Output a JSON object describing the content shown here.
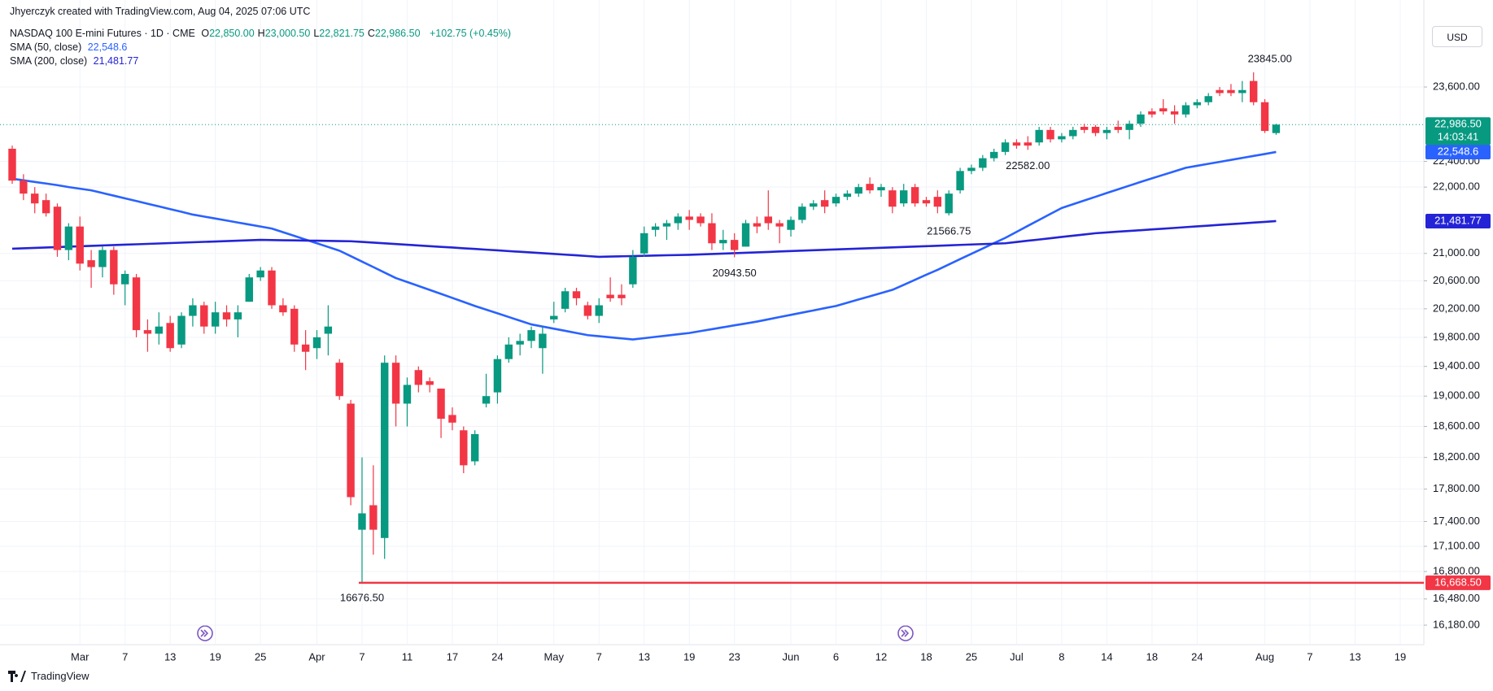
{
  "header": {
    "credit": "Jhyerczyk created with TradingView.com, Aug 04, 2025 07:06 UTC",
    "symbol": "NASDAQ 100 E-mini Futures · 1D · CME",
    "ohlc": [
      {
        "key": "O",
        "text": "22,850.00"
      },
      {
        "key": "H",
        "text": "23,000.50"
      },
      {
        "key": "L",
        "text": "22,821.75"
      },
      {
        "key": "C",
        "text": "22,986.50"
      }
    ],
    "change": "+102.75 (+0.45%)",
    "currency": "USD"
  },
  "footer": {
    "brand": "TradingView"
  },
  "chart_data": {
    "type": "candlestick",
    "log": true,
    "grid": true,
    "up_color": "#089981",
    "down_color": "#f23645",
    "categories": [
      null,
      null,
      null,
      null,
      null,
      null,
      "Mar",
      null,
      null,
      null,
      "7",
      null,
      null,
      null,
      "13",
      null,
      null,
      null,
      "19",
      null,
      null,
      null,
      "25",
      null,
      null,
      null,
      null,
      "Apr",
      null,
      null,
      null,
      "7",
      null,
      null,
      null,
      "11",
      null,
      null,
      null,
      "17",
      null,
      null,
      null,
      "24",
      null,
      null,
      null,
      null,
      "May",
      null,
      null,
      null,
      "7",
      null,
      null,
      null,
      "13",
      null,
      null,
      null,
      "19",
      null,
      null,
      null,
      "23",
      null,
      null,
      null,
      null,
      "Jun",
      null,
      null,
      null,
      "6",
      null,
      null,
      null,
      "12",
      null,
      null,
      null,
      "18",
      null,
      null,
      null,
      "25",
      null,
      null,
      null,
      "Jul",
      null,
      null,
      null,
      "8",
      null,
      null,
      null,
      "14",
      null,
      null,
      null,
      "18",
      null,
      null,
      null,
      "24",
      null,
      null,
      null,
      null,
      null,
      "Aug",
      null,
      null,
      null,
      "7",
      null,
      null,
      null,
      "13",
      null,
      null,
      null,
      "19"
    ],
    "open": [
      22600,
      22100,
      21900,
      21800,
      21700,
      21050,
      21400,
      20900,
      20800,
      21050,
      20550,
      20650,
      19900,
      19850,
      20000,
      19700,
      20100,
      20250,
      19950,
      20150,
      20050,
      20300,
      20650,
      20750,
      20250,
      20200,
      19700,
      19650,
      19850,
      19450,
      18900,
      17300,
      17600,
      17200,
      19450,
      18900,
      19350,
      19200,
      19100,
      18750,
      18550,
      18150,
      18900,
      19050,
      19500,
      19700,
      19750,
      19650,
      20050,
      20200,
      20450,
      20250,
      20100,
      20400,
      20400,
      20550,
      21000,
      21350,
      21400,
      21450,
      21550,
      21550,
      21450,
      21150,
      21200,
      21100,
      21450,
      21550,
      21450,
      21350,
      21500,
      21700,
      21800,
      21750,
      21850,
      21900,
      22050,
      21950,
      21950,
      21750,
      22000,
      21800,
      21850,
      21600,
      21950,
      22250,
      22300,
      22450,
      22550,
      22700,
      22700,
      22700,
      22900,
      22750,
      22800,
      22950,
      22950,
      22850,
      22950,
      22900,
      23000,
      23200,
      23250,
      23200,
      23150,
      23300,
      23350,
      23550,
      23550,
      23500,
      23700,
      23350,
      22850,
      null,
      null,
      null,
      null,
      null,
      null,
      null,
      null,
      null,
      null,
      null
    ],
    "high": [
      22650,
      22200,
      22000,
      21900,
      21750,
      21450,
      21550,
      21050,
      21100,
      21100,
      20750,
      20700,
      20050,
      20150,
      20100,
      20150,
      20350,
      20300,
      20300,
      20250,
      20250,
      20700,
      20800,
      20800,
      20350,
      20250,
      19900,
      19900,
      20250,
      19500,
      18950,
      18200,
      18100,
      19550,
      19550,
      19250,
      19400,
      19250,
      19100,
      18850,
      18600,
      18550,
      19300,
      19550,
      19800,
      19850,
      19950,
      19950,
      20300,
      20500,
      20500,
      20300,
      20350,
      20650,
      20550,
      21050,
      21400,
      21450,
      21500,
      21600,
      21650,
      21600,
      21600,
      21350,
      21300,
      21500,
      21550,
      21950,
      21500,
      21550,
      21750,
      21800,
      21950,
      21900,
      21950,
      22050,
      22150,
      22050,
      22000,
      22050,
      22050,
      21850,
      21950,
      21950,
      22300,
      22350,
      22500,
      22600,
      22750,
      22750,
      22800,
      22950,
      22950,
      22850,
      22950,
      23000,
      22980,
      22950,
      23050,
      23050,
      23200,
      23250,
      23400,
      23300,
      23350,
      23400,
      23500,
      23600,
      23650,
      23700,
      23845,
      23400,
      23000.5,
      null,
      null,
      null,
      null,
      null,
      null,
      null,
      null,
      null,
      null,
      null
    ],
    "low": [
      22050,
      21800,
      21600,
      21550,
      20950,
      20900,
      20750,
      20500,
      20650,
      20400,
      20250,
      19800,
      19600,
      19700,
      19600,
      19650,
      19950,
      19850,
      19850,
      19950,
      19800,
      20300,
      20600,
      20200,
      20100,
      19600,
      19350,
      19500,
      19550,
      18950,
      17600,
      16676.5,
      17000,
      16950,
      18600,
      18600,
      19050,
      19050,
      18450,
      18550,
      18000,
      18100,
      18850,
      18900,
      19450,
      19550,
      19650,
      19300,
      20000,
      20150,
      20250,
      20050,
      20000,
      20300,
      20250,
      20500,
      20950,
      21250,
      21200,
      21350,
      21350,
      21400,
      21050,
      21050,
      20943.5,
      21100,
      21300,
      21350,
      21150,
      21250,
      21450,
      21650,
      21600,
      21700,
      21800,
      21850,
      21900,
      21850,
      21600,
      21700,
      21700,
      21700,
      21600,
      21566.75,
      21900,
      22200,
      22250,
      22400,
      22500,
      22600,
      22582,
      22650,
      22700,
      22700,
      22750,
      22850,
      22800,
      22750,
      22850,
      22750,
      22950,
      23100,
      23150,
      23000,
      23100,
      23250,
      23300,
      23450,
      23450,
      23350,
      23300,
      22850,
      22821.75,
      null,
      null,
      null,
      null,
      null,
      null,
      null,
      null,
      null,
      null,
      null
    ],
    "close": [
      22100,
      21900,
      21750,
      21600,
      21050,
      21400,
      20850,
      20800,
      21050,
      20550,
      20700,
      19900,
      19850,
      19950,
      19650,
      20100,
      20250,
      19950,
      20150,
      20050,
      20150,
      20650,
      20750,
      20250,
      20150,
      19700,
      19600,
      19800,
      19950,
      19000,
      17700,
      17500,
      17300,
      19450,
      18900,
      19150,
      19150,
      19150,
      18700,
      18650,
      18100,
      18500,
      19000,
      19500,
      19700,
      19750,
      19900,
      19850,
      20100,
      20450,
      20350,
      20100,
      20250,
      20350,
      20350,
      20950,
      21300,
      21400,
      21450,
      21550,
      21500,
      21450,
      21150,
      21200,
      21050,
      21450,
      21400,
      21450,
      21400,
      21500,
      21700,
      21750,
      21700,
      21850,
      21900,
      22000,
      21950,
      22000,
      21700,
      21950,
      21750,
      21750,
      21700,
      21900,
      22250,
      22300,
      22450,
      22550,
      22700,
      22650,
      22650,
      22900,
      22750,
      22800,
      22900,
      22900,
      22850,
      22900,
      22900,
      23000,
      23150,
      23150,
      23200,
      23150,
      23300,
      23350,
      23450,
      23500,
      23500,
      23550,
      23350,
      22883.75,
      22986.5,
      null,
      null,
      null,
      null,
      null,
      null,
      null,
      null,
      null,
      null,
      null
    ],
    "series": [
      {
        "name": "SMA (50, close)",
        "color": "#2962ff",
        "last_label": "22,548.6",
        "values": [
          22130,
          22105,
          22080,
          22055,
          22030,
          22000,
          21975,
          21950,
          21909,
          21868,
          21827,
          21786,
          21745,
          21704,
          21663,
          21622,
          21580,
          21550,
          21520,
          21490,
          21460,
          21430,
          21400,
          21370,
          21315,
          21260,
          21205,
          21150,
          21095,
          21040,
          20960,
          20880,
          20800,
          20720,
          20640,
          20583,
          20526,
          20469,
          20412,
          20355,
          20298,
          20240,
          20188,
          20136,
          20084,
          20032,
          19980,
          19950,
          19920,
          19890,
          19860,
          19830,
          19815,
          19800,
          19785,
          19770,
          19788,
          19806,
          19824,
          19842,
          19860,
          19887,
          19913,
          19940,
          19967,
          19993,
          20020,
          20051,
          20083,
          20114,
          20146,
          20177,
          20209,
          20240,
          20286,
          20332,
          20378,
          20424,
          20470,
          20542,
          20615,
          20688,
          20760,
          20838,
          20917,
          20995,
          21073,
          21152,
          21230,
          21320,
          21410,
          21500,
          21590,
          21680,
          21737,
          21794,
          21851,
          21909,
          21966,
          22023,
          22080,
          22135,
          22190,
          22245,
          22300,
          22331,
          22362,
          22393,
          22424,
          22455,
          22486,
          22517,
          22548.6,
          null,
          null,
          null,
          null,
          null,
          null,
          null,
          null,
          null,
          null,
          null
        ]
      },
      {
        "name": "SMA (200, close)",
        "color": "#2424d6",
        "last_label": "21,481.77",
        "values": [
          21070,
          21076,
          21082,
          21088,
          21094,
          21100,
          21106,
          21112,
          21118,
          21124,
          21130,
          21135,
          21141,
          21147,
          21153,
          21159,
          21165,
          21171,
          21176,
          21182,
          21188,
          21194,
          21200,
          21198,
          21195,
          21193,
          21190,
          21188,
          21185,
          21183,
          21180,
          21170,
          21160,
          21149,
          21139,
          21128,
          21118,
          21107,
          21097,
          21087,
          21076,
          21066,
          21055,
          21045,
          21034,
          21024,
          21014,
          21003,
          20993,
          20982,
          20972,
          20961,
          20950,
          20954,
          20958,
          20961,
          20965,
          20969,
          20973,
          20976,
          20980,
          20986,
          20992,
          20998,
          21004,
          21010,
          21016,
          21022,
          21029,
          21035,
          21041,
          21047,
          21053,
          21059,
          21065,
          21071,
          21077,
          21083,
          21089,
          21095,
          21101,
          21107,
          21113,
          21119,
          21126,
          21132,
          21138,
          21144,
          21150,
          21169,
          21188,
          21206,
          21225,
          21244,
          21263,
          21281,
          21300,
          21311,
          21323,
          21334,
          21345,
          21357,
          21368,
          21379,
          21391,
          21402,
          21413,
          21425,
          21436,
          21447,
          21459,
          21470,
          21481.77,
          null,
          null,
          null,
          null,
          null,
          null,
          null,
          null,
          null,
          null,
          null
        ]
      }
    ],
    "ylim": [
      15960,
      24750
    ],
    "yticks": [
      {
        "value": 23600,
        "label": "23,600.00"
      },
      {
        "value": 22400,
        "label": "22,400.00"
      },
      {
        "value": 22000,
        "label": "22,000.00"
      },
      {
        "value": 21000,
        "label": "21,000.00"
      },
      {
        "value": 20600,
        "label": "20,600.00"
      },
      {
        "value": 20200,
        "label": "20,200.00"
      },
      {
        "value": 19800,
        "label": "19,800.00"
      },
      {
        "value": 19400,
        "label": "19,400.00"
      },
      {
        "value": 19000,
        "label": "19,000.00"
      },
      {
        "value": 18600,
        "label": "18,600.00"
      },
      {
        "value": 18200,
        "label": "18,200.00"
      },
      {
        "value": 17800,
        "label": "17,800.00"
      },
      {
        "value": 17400,
        "label": "17,400.00"
      },
      {
        "value": 17100,
        "label": "17,100.00"
      },
      {
        "value": 16800,
        "label": "16,800.00"
      },
      {
        "value": 16480,
        "label": "16,480.00"
      },
      {
        "value": 16180,
        "label": "16,180.00"
      }
    ],
    "annotations": [
      {
        "value": 23845,
        "label": "23845.00"
      },
      {
        "value": 22582,
        "label": "22582.00"
      },
      {
        "value": 21566.75,
        "label": "21566.75"
      },
      {
        "value": 20943.5,
        "label": "20943.50"
      },
      {
        "value": 16676.5,
        "label": "16676.50"
      }
    ],
    "hline": {
      "value": 16668.5,
      "label": "16,668.50",
      "color": "#f23645"
    },
    "last_price": {
      "label": "22,986.50",
      "countdown": "14:03:41"
    }
  }
}
